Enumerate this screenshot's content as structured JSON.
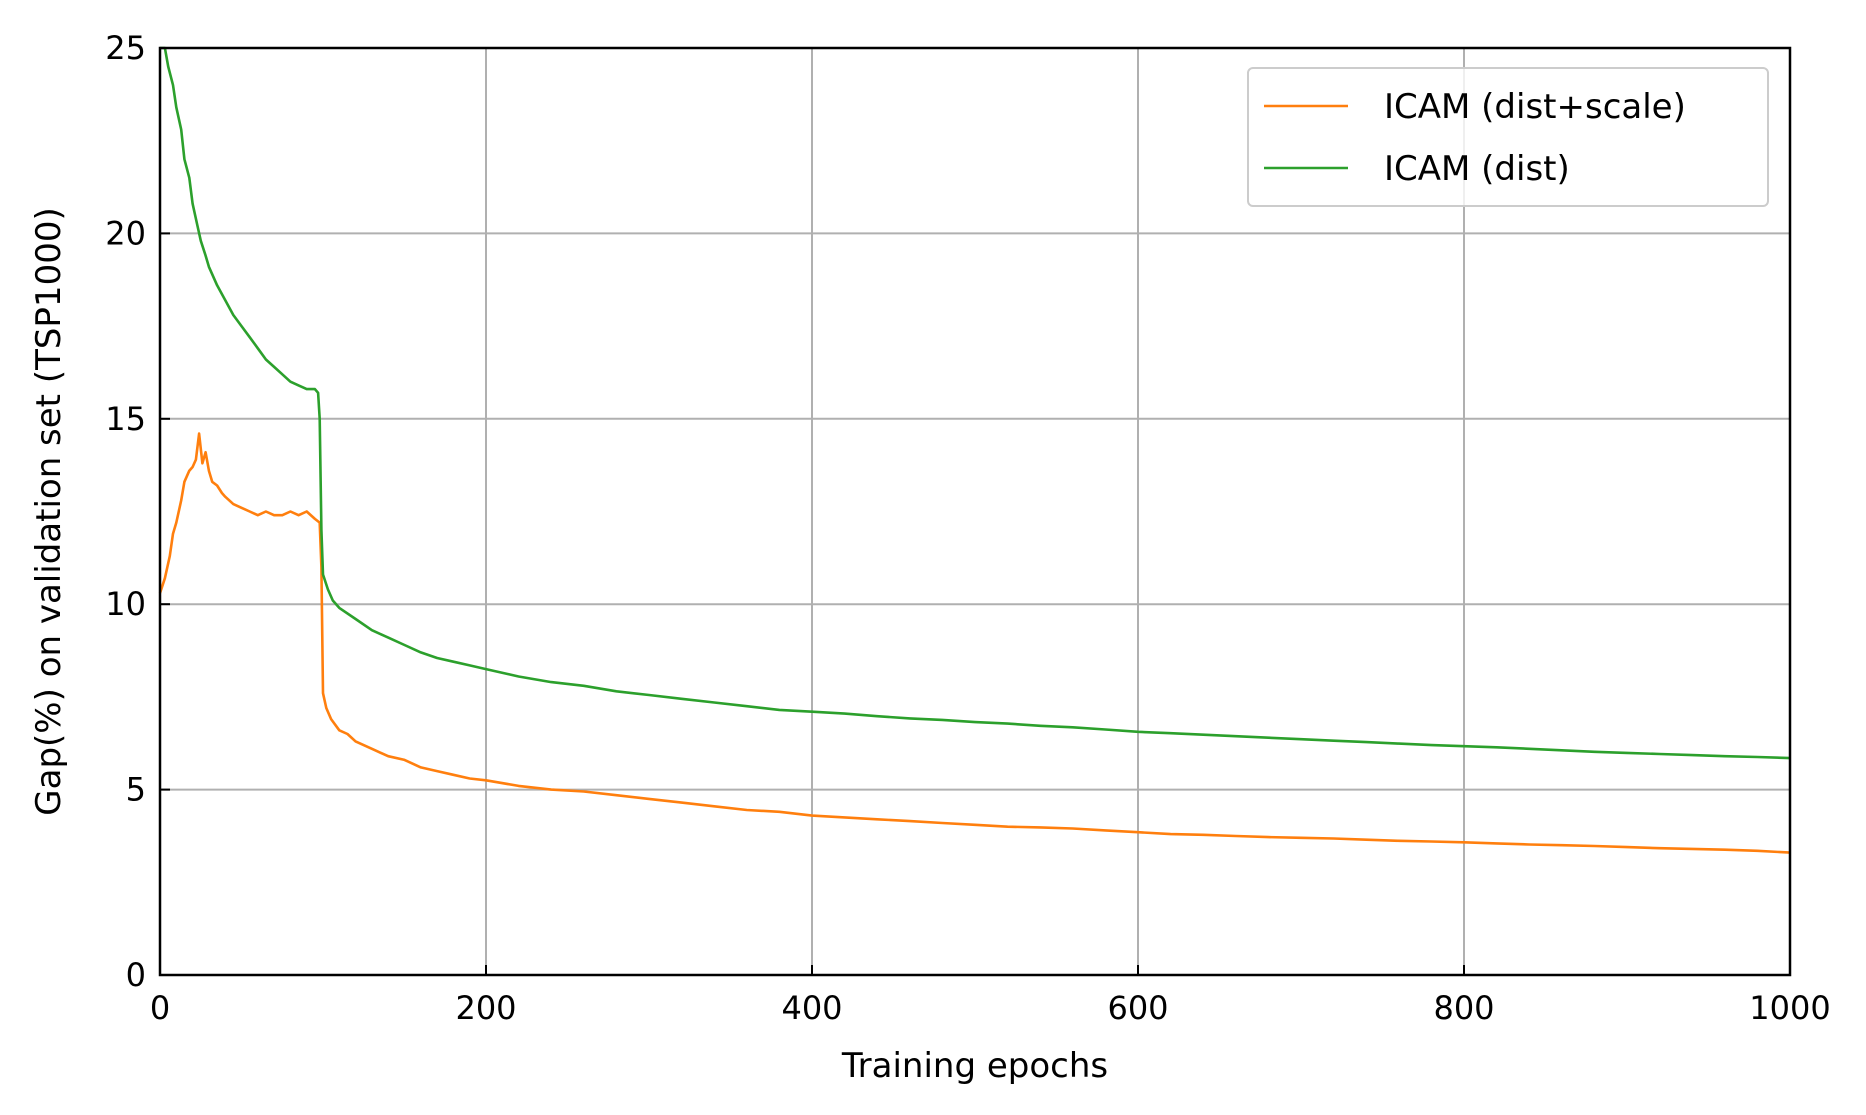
{
  "chart_data": {
    "type": "line",
    "title": "",
    "xlabel": "Training epochs",
    "ylabel": "Gap(%) on validation set (TSP1000)",
    "xlim": [
      0,
      1000
    ],
    "ylim": [
      0,
      25
    ],
    "xticks": [
      0,
      200,
      400,
      600,
      800,
      1000
    ],
    "yticks": [
      0,
      5,
      10,
      15,
      20,
      25
    ],
    "grid": true,
    "legend_position": "top-right",
    "series": [
      {
        "name": "ICAM (dist+scale)",
        "color": "#ff7f0e",
        "points": [
          [
            0,
            10.3
          ],
          [
            3,
            10.7
          ],
          [
            6,
            11.3
          ],
          [
            8,
            11.9
          ],
          [
            10,
            12.2
          ],
          [
            13,
            12.8
          ],
          [
            15,
            13.3
          ],
          [
            18,
            13.6
          ],
          [
            20,
            13.7
          ],
          [
            22,
            13.9
          ],
          [
            24,
            14.6
          ],
          [
            26,
            13.8
          ],
          [
            28,
            14.1
          ],
          [
            30,
            13.6
          ],
          [
            32,
            13.3
          ],
          [
            35,
            13.2
          ],
          [
            38,
            13.0
          ],
          [
            40,
            12.9
          ],
          [
            45,
            12.7
          ],
          [
            50,
            12.6
          ],
          [
            55,
            12.5
          ],
          [
            60,
            12.4
          ],
          [
            65,
            12.5
          ],
          [
            70,
            12.4
          ],
          [
            75,
            12.4
          ],
          [
            80,
            12.5
          ],
          [
            85,
            12.4
          ],
          [
            90,
            12.5
          ],
          [
            95,
            12.3
          ],
          [
            98,
            12.2
          ],
          [
            99,
            11.0
          ],
          [
            100,
            7.6
          ],
          [
            102,
            7.2
          ],
          [
            105,
            6.9
          ],
          [
            110,
            6.6
          ],
          [
            115,
            6.5
          ],
          [
            120,
            6.3
          ],
          [
            130,
            6.1
          ],
          [
            140,
            5.9
          ],
          [
            150,
            5.8
          ],
          [
            160,
            5.6
          ],
          [
            170,
            5.5
          ],
          [
            180,
            5.4
          ],
          [
            190,
            5.3
          ],
          [
            200,
            5.25
          ],
          [
            220,
            5.1
          ],
          [
            240,
            5.0
          ],
          [
            260,
            4.95
          ],
          [
            280,
            4.85
          ],
          [
            300,
            4.75
          ],
          [
            320,
            4.65
          ],
          [
            340,
            4.55
          ],
          [
            360,
            4.45
          ],
          [
            380,
            4.4
          ],
          [
            400,
            4.3
          ],
          [
            420,
            4.25
          ],
          [
            440,
            4.2
          ],
          [
            460,
            4.15
          ],
          [
            480,
            4.1
          ],
          [
            500,
            4.05
          ],
          [
            520,
            4.0
          ],
          [
            540,
            3.98
          ],
          [
            560,
            3.95
          ],
          [
            580,
            3.9
          ],
          [
            600,
            3.85
          ],
          [
            620,
            3.8
          ],
          [
            640,
            3.78
          ],
          [
            660,
            3.75
          ],
          [
            680,
            3.72
          ],
          [
            700,
            3.7
          ],
          [
            720,
            3.68
          ],
          [
            740,
            3.65
          ],
          [
            760,
            3.62
          ],
          [
            780,
            3.6
          ],
          [
            800,
            3.58
          ],
          [
            820,
            3.55
          ],
          [
            840,
            3.52
          ],
          [
            860,
            3.5
          ],
          [
            880,
            3.48
          ],
          [
            900,
            3.45
          ],
          [
            920,
            3.42
          ],
          [
            940,
            3.4
          ],
          [
            960,
            3.38
          ],
          [
            980,
            3.35
          ],
          [
            1000,
            3.3
          ]
        ]
      },
      {
        "name": "ICAM (dist)",
        "color": "#2ca02c",
        "points": [
          [
            0,
            25.2
          ],
          [
            3,
            25.0
          ],
          [
            5,
            24.5
          ],
          [
            8,
            24.0
          ],
          [
            10,
            23.4
          ],
          [
            13,
            22.8
          ],
          [
            15,
            22.0
          ],
          [
            18,
            21.5
          ],
          [
            20,
            20.8
          ],
          [
            23,
            20.2
          ],
          [
            25,
            19.8
          ],
          [
            28,
            19.4
          ],
          [
            30,
            19.1
          ],
          [
            35,
            18.6
          ],
          [
            40,
            18.2
          ],
          [
            45,
            17.8
          ],
          [
            50,
            17.5
          ],
          [
            55,
            17.2
          ],
          [
            60,
            16.9
          ],
          [
            65,
            16.6
          ],
          [
            70,
            16.4
          ],
          [
            75,
            16.2
          ],
          [
            80,
            16.0
          ],
          [
            85,
            15.9
          ],
          [
            90,
            15.8
          ],
          [
            95,
            15.8
          ],
          [
            97,
            15.7
          ],
          [
            98,
            15.0
          ],
          [
            99,
            12.0
          ],
          [
            100,
            10.8
          ],
          [
            103,
            10.4
          ],
          [
            106,
            10.1
          ],
          [
            110,
            9.9
          ],
          [
            120,
            9.6
          ],
          [
            130,
            9.3
          ],
          [
            140,
            9.1
          ],
          [
            150,
            8.9
          ],
          [
            160,
            8.7
          ],
          [
            170,
            8.55
          ],
          [
            180,
            8.45
          ],
          [
            190,
            8.35
          ],
          [
            200,
            8.25
          ],
          [
            220,
            8.05
          ],
          [
            240,
            7.9
          ],
          [
            260,
            7.8
          ],
          [
            280,
            7.65
          ],
          [
            300,
            7.55
          ],
          [
            320,
            7.45
          ],
          [
            340,
            7.35
          ],
          [
            360,
            7.25
          ],
          [
            380,
            7.15
          ],
          [
            400,
            7.1
          ],
          [
            420,
            7.05
          ],
          [
            440,
            6.98
          ],
          [
            460,
            6.92
          ],
          [
            480,
            6.88
          ],
          [
            500,
            6.82
          ],
          [
            520,
            6.78
          ],
          [
            540,
            6.72
          ],
          [
            560,
            6.68
          ],
          [
            580,
            6.62
          ],
          [
            600,
            6.56
          ],
          [
            620,
            6.52
          ],
          [
            640,
            6.48
          ],
          [
            660,
            6.44
          ],
          [
            680,
            6.4
          ],
          [
            700,
            6.36
          ],
          [
            720,
            6.32
          ],
          [
            740,
            6.28
          ],
          [
            760,
            6.24
          ],
          [
            780,
            6.2
          ],
          [
            800,
            6.17
          ],
          [
            820,
            6.14
          ],
          [
            840,
            6.1
          ],
          [
            860,
            6.06
          ],
          [
            880,
            6.02
          ],
          [
            900,
            5.99
          ],
          [
            920,
            5.96
          ],
          [
            940,
            5.93
          ],
          [
            960,
            5.9
          ],
          [
            980,
            5.88
          ],
          [
            1000,
            5.85
          ]
        ]
      }
    ]
  }
}
